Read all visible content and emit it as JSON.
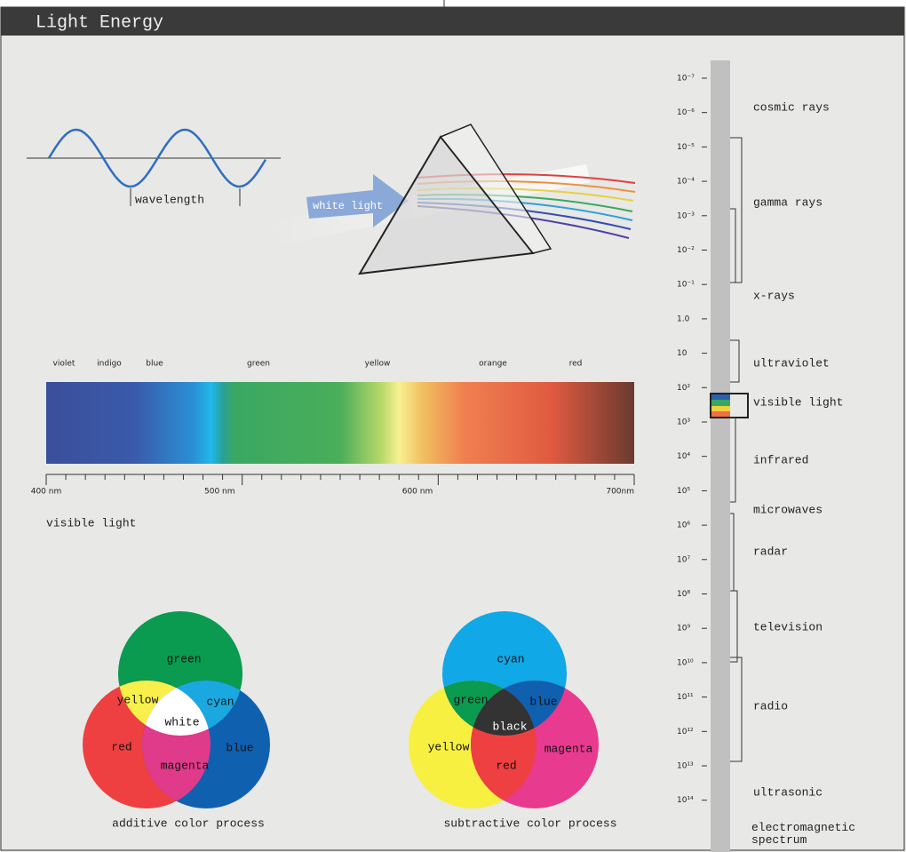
{
  "header": {
    "title": "Light Energy"
  },
  "wave": {
    "label": "wavelength"
  },
  "prism": {
    "label": "white light"
  },
  "spectrum": {
    "colors": [
      "violet",
      "indigo",
      "blue",
      "green",
      "yellow",
      "orange",
      "red"
    ],
    "ticks": [
      "400 nm",
      "500 nm",
      "600 nm",
      "700nm"
    ],
    "caption": "visible light"
  },
  "additive": {
    "labels": [
      "green",
      "yellow",
      "cyan",
      "white",
      "red",
      "blue",
      "magenta"
    ],
    "caption": "additive color process"
  },
  "subtractive": {
    "labels": [
      "cyan",
      "green",
      "blue",
      "black",
      "yellow",
      "magenta",
      "red"
    ],
    "caption": "subtractive color process"
  },
  "em": {
    "scale": [
      "10⁻⁷",
      "10⁻⁶",
      "10⁻⁵",
      "10⁻⁴",
      "10⁻³",
      "10⁻²",
      "10⁻¹",
      "1.0",
      "10",
      "10²",
      "10³",
      "10⁴",
      "10⁵",
      "10⁶",
      "10⁷",
      "10⁸",
      "10⁹",
      "10¹⁰",
      "10¹¹",
      "10¹²",
      "10¹³",
      "10¹⁴"
    ],
    "bands": [
      "cosmic rays",
      "gamma rays",
      "x-rays",
      "ultraviolet",
      "visible light",
      "infrared",
      "microwaves",
      "radar",
      "television",
      "radio",
      "ultrasonic"
    ],
    "caption": "electromagnetic spectrum"
  }
}
